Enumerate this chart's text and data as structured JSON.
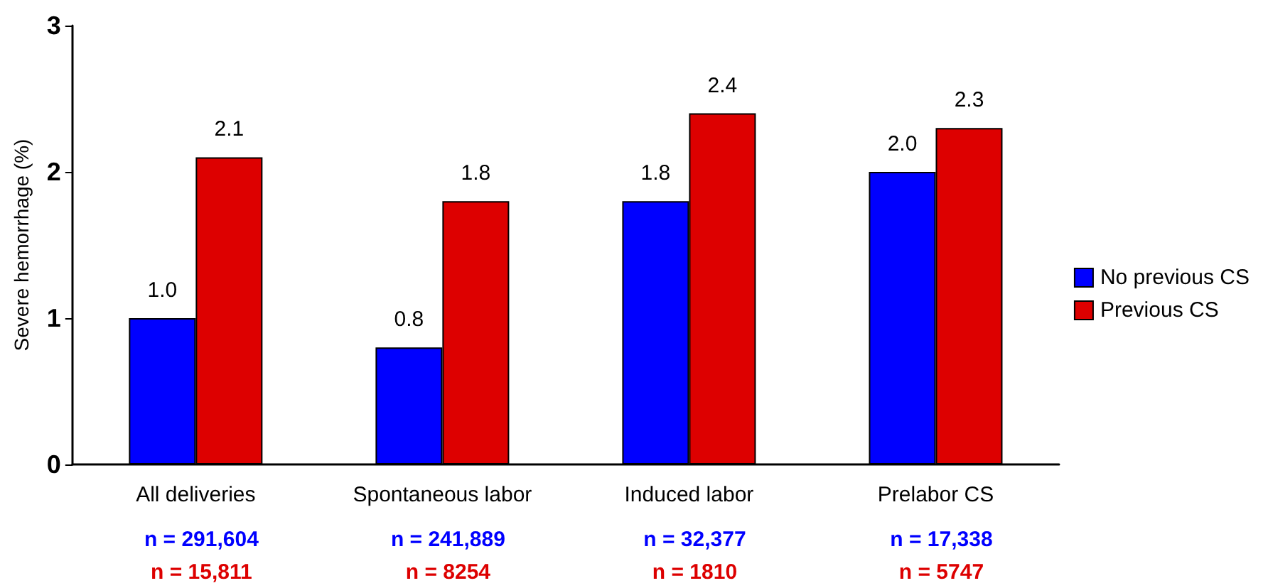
{
  "chart_data": {
    "type": "bar",
    "ylabel": "Severe hemorrhage (%)",
    "categories": [
      "All deliveries",
      "Spontaneous labor",
      "Induced labor",
      "Prelabor CS"
    ],
    "series": [
      {
        "name": "No previous CS",
        "color": "#0000ff",
        "values": [
          1.0,
          0.8,
          1.8,
          2.0
        ],
        "value_labels": [
          "1.0",
          "0.8",
          "1.8",
          "2.0"
        ]
      },
      {
        "name": "Previous CS",
        "color": "#dd0000",
        "values": [
          2.1,
          1.8,
          2.4,
          2.3
        ],
        "value_labels": [
          "2.1",
          "1.8",
          "2.4",
          "2.3"
        ]
      }
    ],
    "ylim": [
      0,
      3
    ],
    "yticks": [
      0,
      1,
      2,
      3
    ],
    "grid": false,
    "legend": "right",
    "annotations": [
      "n = 291,604",
      "n = 241,889",
      "n = 32,377",
      "n = 17,338",
      "n = 15,811",
      "n = 8254",
      "n = 1810",
      "n = 5747"
    ]
  }
}
